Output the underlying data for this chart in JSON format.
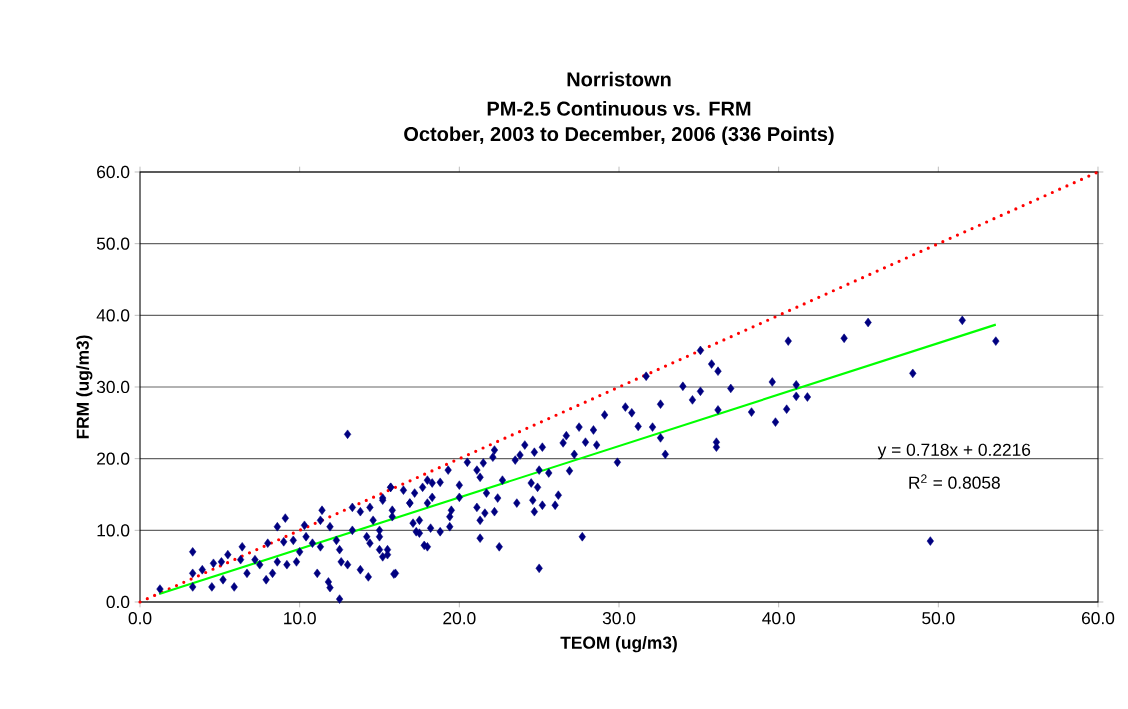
{
  "chart_data": {
    "type": "scatter",
    "title": "Norristown",
    "subtitle": "PM-2.5 Continuous vs. FRM",
    "xlabel": "TEOM (ug/m3)",
    "ylabel": "FRM (ug/m3)",
    "annotations": [
      "October, 2003 to December, 2006 (336 Points)",
      "y = 0.718x + 0.2216",
      "R$^{2}$ = 0.8058"
    ],
    "xlim": [
      0,
      60
    ],
    "ylim": [
      0,
      60
    ],
    "xticks": [
      {
        "value": 0,
        "label": "0.0"
      },
      {
        "value": 10,
        "label": "10.0"
      },
      {
        "value": 20,
        "label": "20.0"
      },
      {
        "value": 30,
        "label": "30.0"
      },
      {
        "value": 40,
        "label": "40.0"
      },
      {
        "value": 50,
        "label": "50.0"
      },
      {
        "value": 60,
        "label": "60.0"
      }
    ],
    "yticks": [
      {
        "value": 0,
        "label": "0.0"
      },
      {
        "value": 10,
        "label": "10.0"
      },
      {
        "value": 20,
        "label": "20.0"
      },
      {
        "value": 30,
        "label": "30.0"
      },
      {
        "value": 40,
        "label": "40.0"
      },
      {
        "value": 50,
        "label": "50.0"
      },
      {
        "value": 60,
        "label": "60.0"
      }
    ],
    "grid": "y",
    "marker": "diamond",
    "series": [
      {
        "color": "#000080",
        "x": [
          51.5,
          45.6,
          53.6,
          44.1,
          40.6,
          48.4,
          49.5,
          35.1,
          35.8,
          36.2,
          34.0,
          35.1,
          34.6,
          37.0,
          39.6,
          41.1,
          41.1,
          41.8,
          36.2,
          38.3,
          40.5,
          39.8,
          36.1,
          36.1,
          32.9,
          32.6,
          31.7,
          30.4,
          30.8,
          29.1,
          31.2,
          32.1,
          32.6,
          29.9,
          27.5,
          28.4,
          26.7,
          26.5,
          27.9,
          28.6,
          27.2,
          26.9,
          27.7,
          25.0,
          24.1,
          25.2,
          24.7,
          23.8,
          23.5,
          25.0,
          25.6,
          24.5,
          24.9,
          26.2,
          26.0,
          24.6,
          25.2,
          23.6,
          24.7,
          22.2,
          22.1,
          20.5,
          21.5,
          21.1,
          21.3,
          19.3,
          22.7,
          21.7,
          21.1,
          21.6,
          22.2,
          22.4,
          21.3,
          21.3,
          22.5,
          20.0,
          20.0,
          19.5,
          19.4,
          18.8,
          18.3,
          18.0,
          17.7,
          18.3,
          18.0,
          17.2,
          16.9,
          16.5,
          15.7,
          15.2,
          15.8,
          17.1,
          17.5,
          18.0,
          18.8,
          19.4,
          18.2,
          15.5,
          15.2,
          15.9,
          15.0,
          13.0,
          1.25,
          3.3,
          3.3,
          3.3,
          4.5,
          3.9,
          4.6,
          5.1,
          5.9,
          5.5,
          6.4,
          6.3,
          6.7,
          7.5,
          7.9,
          8.3,
          8.6,
          8.0,
          8.6,
          9.1,
          9.0,
          9.6,
          9.2,
          9.8,
          10.3,
          10.4,
          10.8,
          11.4,
          11.3,
          11.1,
          11.9,
          11.3,
          11.8,
          11.9,
          12.5,
          12.5,
          12.6,
          13.0,
          13.8,
          14.3,
          13.3,
          13.8,
          14.4,
          14.6,
          13.3,
          14.2,
          14.4,
          15.0,
          15.5,
          16.0,
          15.2,
          15.7,
          16.9,
          15.8,
          15.0,
          17.5,
          17.8,
          17.3,
          12.3,
          10.0,
          5.2,
          7.2
        ],
        "values": [
          39.3,
          39.0,
          36.4,
          36.8,
          36.4,
          31.9,
          8.5,
          35.1,
          33.2,
          32.2,
          30.1,
          29.4,
          28.2,
          29.8,
          30.7,
          30.3,
          28.7,
          28.6,
          26.8,
          26.5,
          26.9,
          25.1,
          22.3,
          21.6,
          20.6,
          27.6,
          31.5,
          27.2,
          26.4,
          26.1,
          24.5,
          24.4,
          22.9,
          19.5,
          24.4,
          24.0,
          23.2,
          22.2,
          22.3,
          21.9,
          20.6,
          18.3,
          9.1,
          4.7,
          21.9,
          21.6,
          20.9,
          20.5,
          19.8,
          18.4,
          18.0,
          16.6,
          16.0,
          14.9,
          13.5,
          14.2,
          13.5,
          13.8,
          12.6,
          21.2,
          20.2,
          19.5,
          19.4,
          18.4,
          17.4,
          18.4,
          17.0,
          15.2,
          13.2,
          12.4,
          12.6,
          14.5,
          11.4,
          8.9,
          7.7,
          16.3,
          14.6,
          12.8,
          10.5,
          16.7,
          16.6,
          17.0,
          16.0,
          14.6,
          13.8,
          15.2,
          13.8,
          15.6,
          16.0,
          14.2,
          12.8,
          11.0,
          9.6,
          7.7,
          9.8,
          11.9,
          10.3,
          7.3,
          6.3,
          3.9,
          9.1,
          23.4,
          1.8,
          7.0,
          4.0,
          2.1,
          2.1,
          4.5,
          5.4,
          5.6,
          2.1,
          6.6,
          7.7,
          5.9,
          4.0,
          5.2,
          3.1,
          4.0,
          5.6,
          8.2,
          10.5,
          11.7,
          8.4,
          8.6,
          5.2,
          5.6,
          10.7,
          9.1,
          8.2,
          12.8,
          11.4,
          4.0,
          10.5,
          7.7,
          2.8,
          2.0,
          0.4,
          7.3,
          5.6,
          5.2,
          4.5,
          3.5,
          13.2,
          12.6,
          13.2,
          11.4,
          10.0,
          9.1,
          8.2,
          7.3,
          6.6,
          4.0,
          14.5,
          16.0,
          13.8,
          11.9,
          10.0,
          11.4,
          7.9,
          9.8,
          8.6,
          7.0,
          3.1,
          5.9
        ]
      },
      {
        "type": "line",
        "color": "#ff0000",
        "marker": "none",
        "line_style": "dotted",
        "x": [
          0,
          60
        ],
        "values": [
          0,
          60
        ]
      },
      {
        "type": "line",
        "color": "#00ff00",
        "marker": "none",
        "line_style": "solid",
        "x": [
          1.2,
          53.6
        ],
        "values": [
          1.1,
          38.7
        ]
      }
    ]
  }
}
